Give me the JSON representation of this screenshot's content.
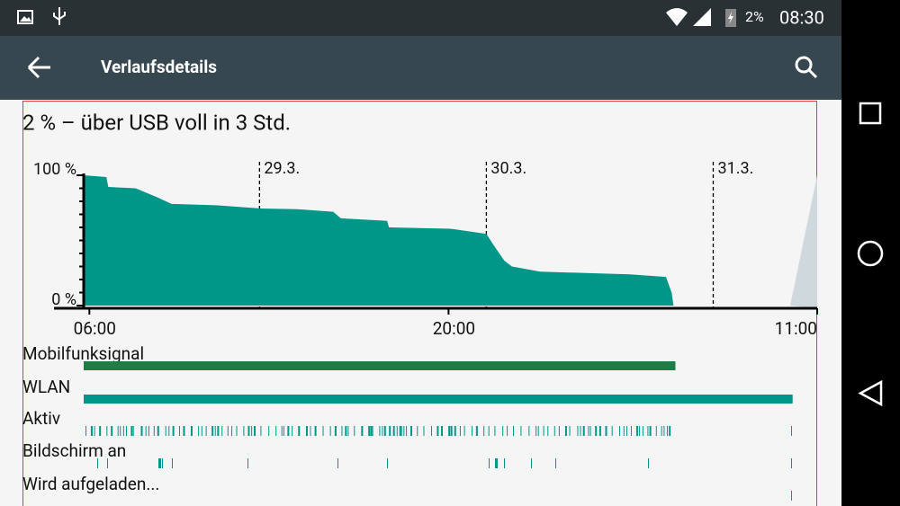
{
  "status_bar": {
    "battery": "2%",
    "time": "08:30"
  },
  "app_bar": {
    "title": "Verlaufsdetails"
  },
  "summary": "2 % – über USB voll in 3 Std.",
  "battery_chart": {
    "type": "area",
    "color": "#009688",
    "x": [
      5.4,
      7.8,
      8.0,
      10.9,
      13.2,
      14.7,
      19.4,
      24.2,
      28.0,
      31.8,
      32.6,
      37.5,
      37.7,
      44.2,
      48.0,
      48.8,
      49.9,
      50.7,
      53.7,
      58.5,
      63.2,
      67.0,
      67.6,
      67.8
    ],
    "values": [
      100,
      98.6,
      91,
      90,
      83,
      78,
      77,
      74.5,
      74,
      72,
      67,
      65,
      60,
      59,
      55,
      46,
      34.5,
      30,
      26,
      25,
      24,
      22,
      10,
      0
    ],
    "xlim": [
      5.4,
      83
    ],
    "ylim": [
      0,
      100
    ],
    "yticks": [
      {
        "value": 0,
        "label": "0 %"
      },
      {
        "value": 100,
        "label": "100 %"
      }
    ],
    "xticks": [
      {
        "value": 6,
        "label": "06:00"
      },
      {
        "value": 44,
        "label": "20:00"
      },
      {
        "value": 83,
        "label": "11:00"
      }
    ],
    "day_markers": [
      {
        "value": 24,
        "label": "29.3."
      },
      {
        "value": 48,
        "label": "30.3."
      },
      {
        "value": 72,
        "label": "31.3."
      }
    ]
  },
  "rows": [
    {
      "label": "Mobilfunksignal",
      "span": [
        5.4,
        68
      ],
      "color": "#1b7f45"
    },
    {
      "label": "WLAN",
      "span": [
        5.4,
        80.4
      ],
      "color": "#00968a"
    },
    {
      "label": "Aktiv"
    },
    {
      "label": "Bildschirm an"
    },
    {
      "label": "Wird aufgeladen..."
    }
  ]
}
